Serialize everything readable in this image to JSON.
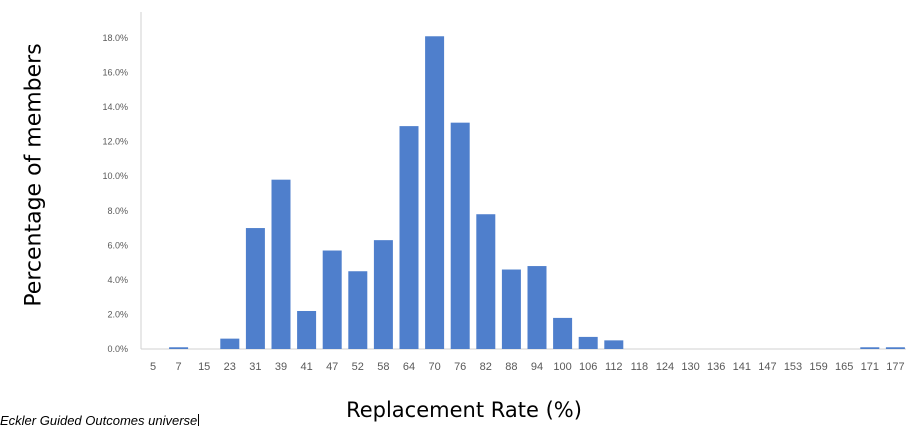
{
  "chart_data": {
    "type": "bar",
    "xlabel": "Replacement Rate (%)",
    "ylabel": "Percentage of members",
    "categories": [
      "5",
      "7",
      "15",
      "23",
      "31",
      "39",
      "41",
      "47",
      "52",
      "58",
      "64",
      "70",
      "76",
      "82",
      "88",
      "94",
      "100",
      "106",
      "112",
      "118",
      "124",
      "130",
      "136",
      "141",
      "147",
      "153",
      "159",
      "165",
      "171",
      "177"
    ],
    "values": [
      0.0,
      0.1,
      0.0,
      0.6,
      7.0,
      9.8,
      2.2,
      5.7,
      4.5,
      6.3,
      12.9,
      18.1,
      13.1,
      7.8,
      4.6,
      4.8,
      1.8,
      0.7,
      0.5,
      0.0,
      0.0,
      0.0,
      0.0,
      0.0,
      0.0,
      0.0,
      0.0,
      0.0,
      0.1,
      0.1
    ],
    "ylim": [
      0,
      18
    ],
    "yticks": [
      "0.0%",
      "2.0%",
      "4.0%",
      "6.0%",
      "8.0%",
      "10.0%",
      "12.0%",
      "14.0%",
      "16.0%",
      "18.0%"
    ],
    "grid": false,
    "bar_color": "#4f7fcc"
  },
  "source_note": "Eckler Guided Outcomes universe"
}
